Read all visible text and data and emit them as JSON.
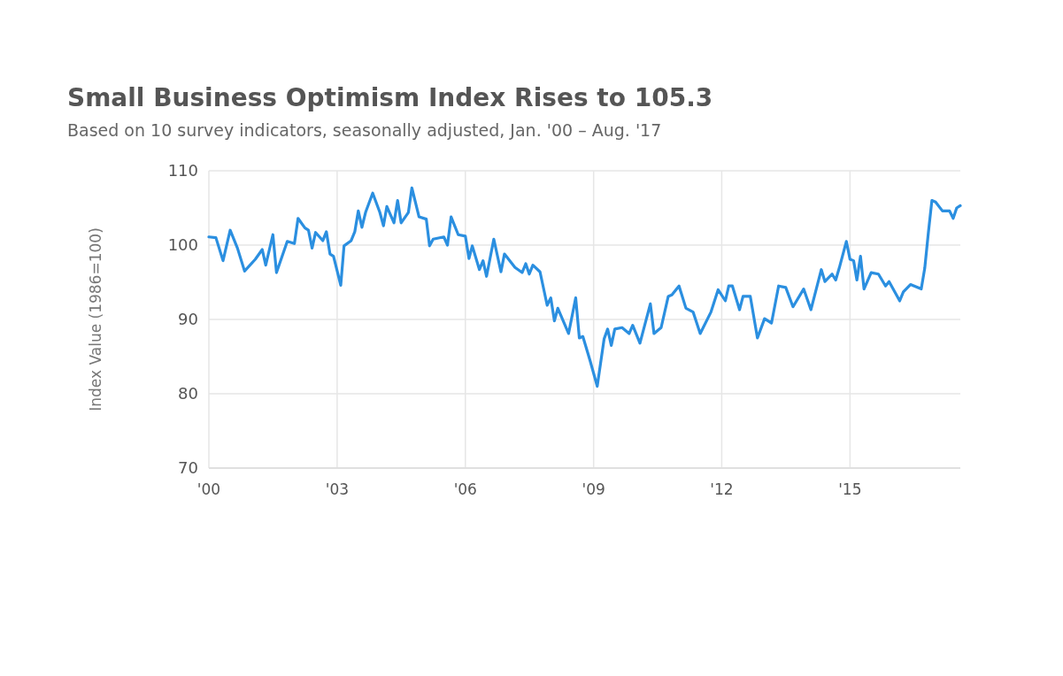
{
  "chart_data": {
    "type": "line",
    "title": "Small Business Optimism Index Rises to 105.3",
    "subtitle": "Based on 10 survey indicators, seasonally adjusted, Jan. '00 – Aug. '17",
    "ylabel": "Index Value (1986=100)",
    "x": [
      "2000-01",
      "2000-03",
      "2000-05",
      "2000-07",
      "2000-09",
      "2000-11",
      "2001-02",
      "2001-04",
      "2001-05",
      "2001-07",
      "2001-08",
      "2001-11",
      "2002-01",
      "2002-02",
      "2002-04",
      "2002-05",
      "2002-06",
      "2002-07",
      "2002-09",
      "2002-10",
      "2002-11",
      "2002-12",
      "2003-02",
      "2003-03",
      "2003-05",
      "2003-06",
      "2003-07",
      "2003-08",
      "2003-09",
      "2003-11",
      "2004-01",
      "2004-02",
      "2004-03",
      "2004-05",
      "2004-06",
      "2004-07",
      "2004-09",
      "2004-10",
      "2004-12",
      "2005-02",
      "2005-03",
      "2005-04",
      "2005-07",
      "2005-08",
      "2005-09",
      "2005-11",
      "2006-01",
      "2006-02",
      "2006-03",
      "2006-05",
      "2006-06",
      "2006-07",
      "2006-09",
      "2006-11",
      "2006-12",
      "2007-03",
      "2007-05",
      "2007-06",
      "2007-07",
      "2007-08",
      "2007-10",
      "2007-12",
      "2008-01",
      "2008-02",
      "2008-03",
      "2008-06",
      "2008-08",
      "2008-09",
      "2008-10",
      "2008-12",
      "2009-02",
      "2009-04",
      "2009-05",
      "2009-06",
      "2009-07",
      "2009-09",
      "2009-11",
      "2009-12",
      "2010-02",
      "2010-05",
      "2010-06",
      "2010-08",
      "2010-10",
      "2010-11",
      "2011-01",
      "2011-03",
      "2011-05",
      "2011-07",
      "2011-10",
      "2011-12",
      "2012-02",
      "2012-03",
      "2012-04",
      "2012-06",
      "2012-07",
      "2012-09",
      "2012-11",
      "2013-01",
      "2013-03",
      "2013-05",
      "2013-07",
      "2013-09",
      "2013-12",
      "2014-02",
      "2014-05",
      "2014-06",
      "2014-08",
      "2014-09",
      "2014-10",
      "2014-12",
      "2015-01",
      "2015-02",
      "2015-03",
      "2015-04",
      "2015-05",
      "2015-07",
      "2015-09",
      "2015-11",
      "2015-12",
      "2016-03",
      "2016-04",
      "2016-06",
      "2016-09",
      "2016-10",
      "2016-11",
      "2016-12",
      "2017-01",
      "2017-03",
      "2017-05",
      "2017-06",
      "2017-07",
      "2017-08"
    ],
    "series": [
      {
        "color": "#2b8fe0",
        "values": [
          101.1,
          101.0,
          97.9,
          102.0,
          99.6,
          96.5,
          98.1,
          99.4,
          97.3,
          101.4,
          96.3,
          100.5,
          100.2,
          103.6,
          102.3,
          102.0,
          99.6,
          101.7,
          100.6,
          101.8,
          98.8,
          98.5,
          94.6,
          99.9,
          100.6,
          101.8,
          104.6,
          102.4,
          104.4,
          107.0,
          104.4,
          102.6,
          105.2,
          103.0,
          106.0,
          103.0,
          104.4,
          107.7,
          103.8,
          103.5,
          99.9,
          100.8,
          101.1,
          100.0,
          103.8,
          101.4,
          101.2,
          98.2,
          99.9,
          96.7,
          97.9,
          95.8,
          100.8,
          96.4,
          98.8,
          97.0,
          96.3,
          97.5,
          96.1,
          97.3,
          96.4,
          91.9,
          92.9,
          89.8,
          91.5,
          88.1,
          92.9,
          87.5,
          87.7,
          84.5,
          81.0,
          87.4,
          88.7,
          86.5,
          88.7,
          88.9,
          88.1,
          89.2,
          86.8,
          92.1,
          88.1,
          88.9,
          93.1,
          93.3,
          94.5,
          91.5,
          91.0,
          88.1,
          91.0,
          94.0,
          92.5,
          94.5,
          94.5,
          91.3,
          93.1,
          93.1,
          87.5,
          90.1,
          89.5,
          94.5,
          94.3,
          91.7,
          94.1,
          91.3,
          96.7,
          95.1,
          96.1,
          95.3,
          96.9,
          100.5,
          98.1,
          97.9,
          95.3,
          98.5,
          94.1,
          96.3,
          96.1,
          94.5,
          95.1,
          92.5,
          93.7,
          94.7,
          94.1,
          96.9,
          101.7,
          106.0,
          105.8,
          104.6,
          104.6,
          103.6,
          105.0,
          105.3
        ]
      }
    ],
    "xlim": [
      "2000-01",
      "2017-08"
    ],
    "xticks": [
      {
        "value": "2000-01",
        "label": "'00"
      },
      {
        "value": "2003-01",
        "label": "'03"
      },
      {
        "value": "2006-01",
        "label": "'06"
      },
      {
        "value": "2009-01",
        "label": "'09"
      },
      {
        "value": "2012-01",
        "label": "'12"
      },
      {
        "value": "2015-01",
        "label": "'15"
      }
    ],
    "ylim": [
      70,
      110
    ],
    "yticks": [
      70,
      80,
      90,
      100,
      110
    ],
    "grid": true
  }
}
